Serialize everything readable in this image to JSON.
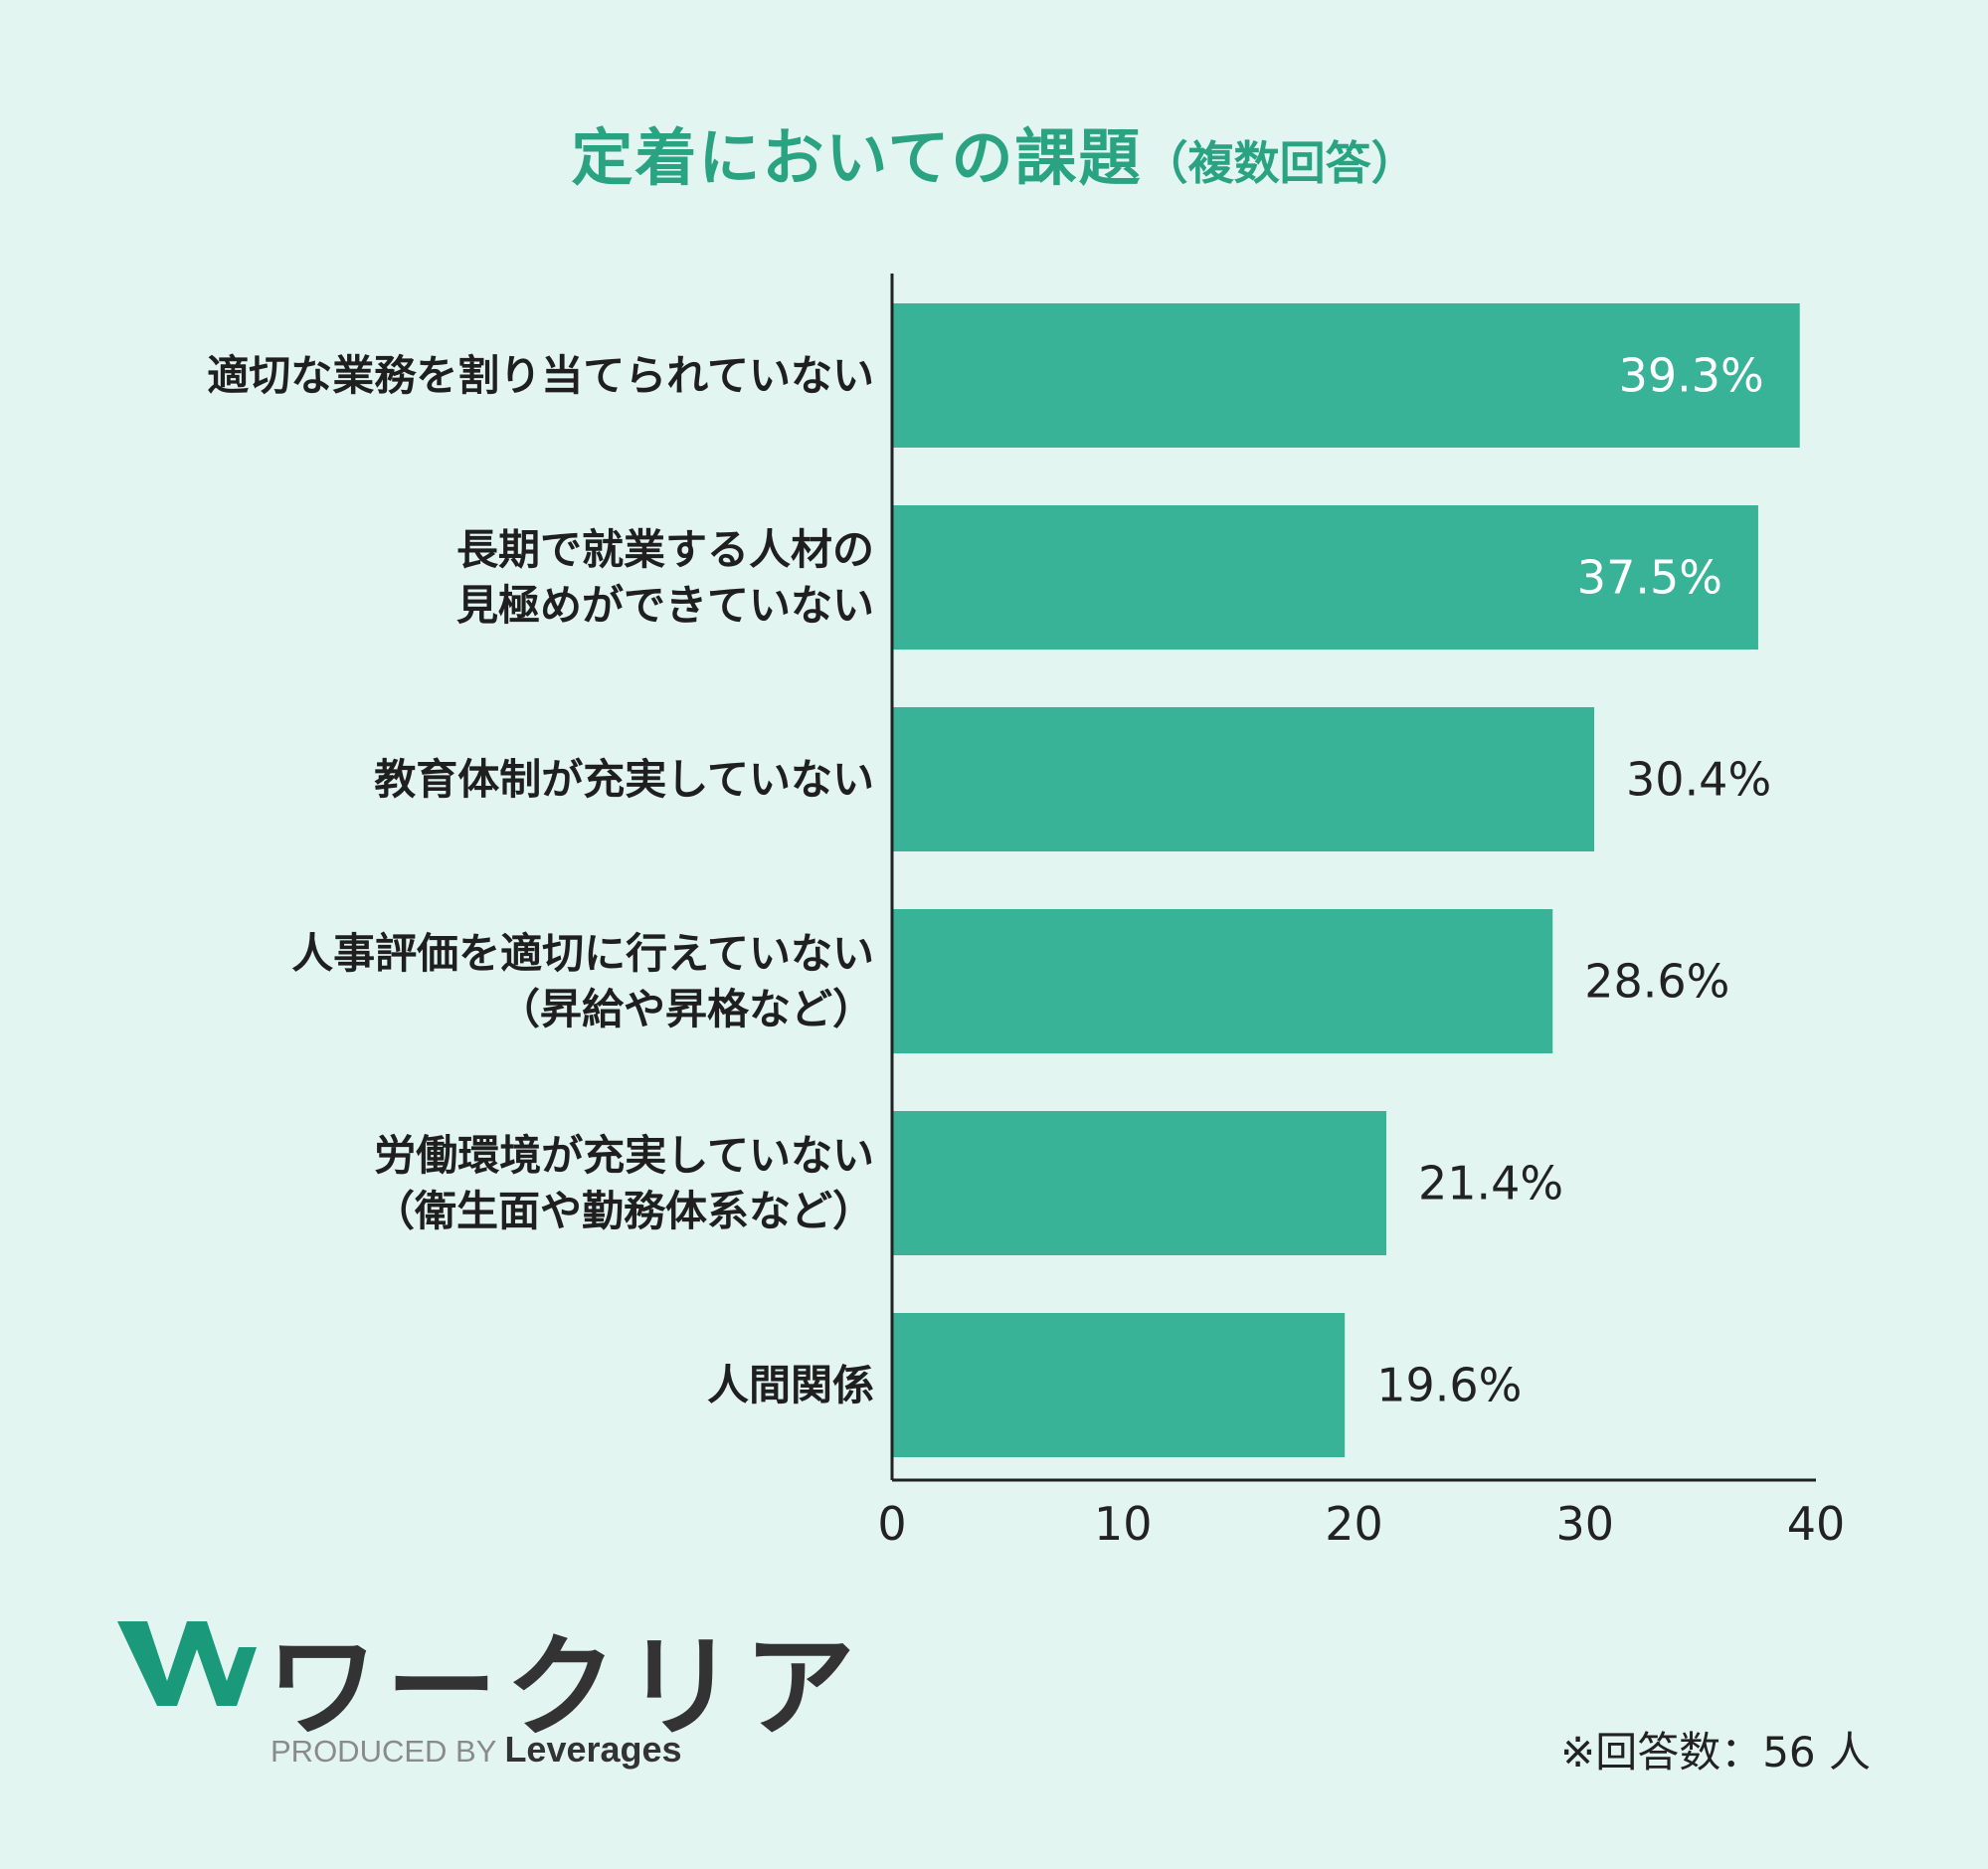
{
  "title": "定着においての課題",
  "subtitle": "（複数回答）",
  "chart_data": {
    "type": "bar",
    "orientation": "horizontal",
    "categories": [
      "適切な業務を割り当てられていない",
      "長期で就業する人材の見極めができていない",
      "教育体制が充実していない",
      "人事評価を適切に行えていない（昇給や昇格など）",
      "労働環境が充実していない（衛生面や勤務体系など）",
      "人間関係"
    ],
    "category_lines": [
      [
        "適切な業務を割り当てられていない"
      ],
      [
        "長期で就業する人材の",
        "見極めができていない"
      ],
      [
        "教育体制が充実していない"
      ],
      [
        "人事評価を適切に行えていない",
        "（昇給や昇格など）"
      ],
      [
        "労働環境が充実していない",
        "（衛生面や勤務体系など）"
      ],
      [
        "人間関係"
      ]
    ],
    "values": [
      39.3,
      37.5,
      30.4,
      28.6,
      21.4,
      19.6
    ],
    "value_labels": [
      "39.3%",
      "37.5%",
      "30.4%",
      "28.6%",
      "21.4%",
      "19.6%"
    ],
    "xlim": [
      0,
      40
    ],
    "xticks": [
      0,
      10,
      20,
      30,
      40
    ],
    "bar_color": "#38b398",
    "label_inside_color": "#ffffff",
    "label_outside_color": "#222222",
    "grid": false
  },
  "logo": {
    "name": "ワークリア",
    "produced_by": "PRODUCED BY",
    "brand": "Leverages",
    "mark_color": "#1a9a7a"
  },
  "footnote": "※回答数：56 人"
}
